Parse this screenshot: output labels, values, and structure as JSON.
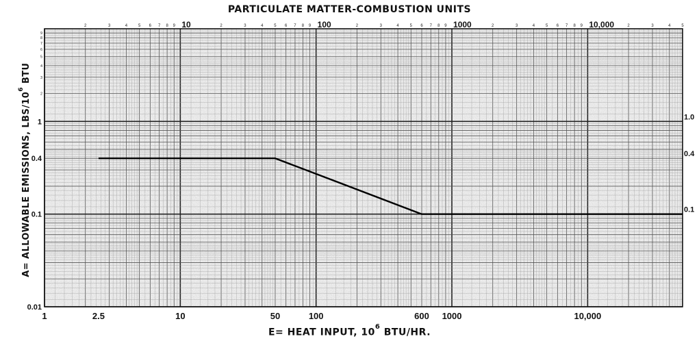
{
  "chart_data": {
    "type": "line",
    "title": "PARTICULATE MATTER-COMBUSTION UNITS",
    "xlabel_prefix": "E= HEAT INPUT,",
    "xlabel_base": "10",
    "xlabel_exp": "6",
    "xlabel_unit": "BTU/HR.",
    "ylabel_prefix": "A= ALLOWABLE EMISSIONS, LBS/10",
    "ylabel_exp": "6",
    "ylabel_unit": "BTU",
    "x_scale": "log",
    "y_scale": "log",
    "xlim": [
      1,
      50000
    ],
    "ylim": [
      0.01,
      10
    ],
    "grid": true,
    "x_ticks_bottom": [
      "1",
      "2.5",
      "10",
      "50",
      "100",
      "600",
      "1000",
      "10,000"
    ],
    "x_ticks_top_decades": [
      "10",
      "100",
      "1000",
      "10,000"
    ],
    "y_ticks_left": [
      "0.01",
      "0.1",
      "0.4",
      "1"
    ],
    "y_ticks_right": [
      "1.0",
      "0.4",
      "0.1"
    ],
    "series": [
      {
        "x": [
          2.5,
          50,
          600,
          50000
        ],
        "y": [
          0.4,
          0.4,
          0.1,
          0.1
        ]
      }
    ]
  }
}
